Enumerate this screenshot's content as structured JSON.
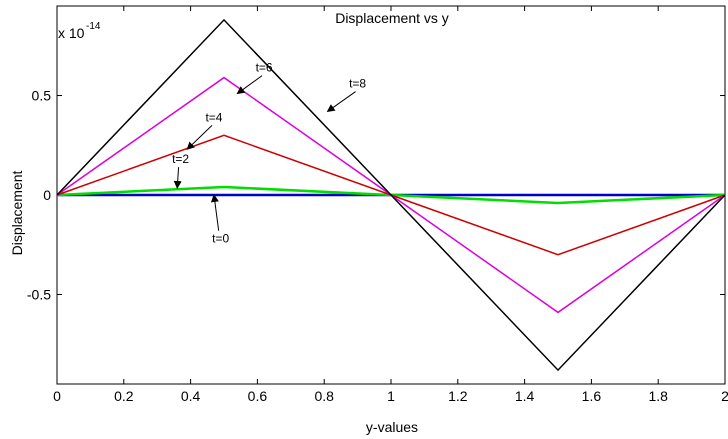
{
  "chart_data": {
    "type": "line",
    "title": "Displacement vs y",
    "xlabel": "y-values",
    "ylabel": "Displacement",
    "y_exponent_base": "x 10",
    "y_exponent_power": "-14",
    "xlim": [
      0,
      2
    ],
    "ylim": [
      -0.95,
      0.95
    ],
    "x_ticks": [
      0,
      0.2,
      0.4,
      0.6,
      0.8,
      1,
      1.2,
      1.4,
      1.6,
      1.8,
      2
    ],
    "x_tick_labels": [
      "0",
      "0.2",
      "0.4",
      "0.6",
      "0.8",
      "1",
      "1.2",
      "1.4",
      "1.6",
      "1.8",
      "2"
    ],
    "y_ticks": [
      -0.5,
      0,
      0.5
    ],
    "y_tick_labels": [
      "-0.5",
      "0",
      "0.5"
    ],
    "grid": false,
    "series": [
      {
        "name": "t=0",
        "color": "#0000cc",
        "width": 2.5,
        "x": [
          0,
          0.5,
          1,
          1.5,
          2
        ],
        "y": [
          0,
          0,
          0,
          0,
          0
        ]
      },
      {
        "name": "t=2",
        "color": "#00dd00",
        "width": 2.5,
        "x": [
          0,
          0.5,
          1,
          1.5,
          2
        ],
        "y": [
          0,
          0.04,
          0,
          -0.04,
          0
        ]
      },
      {
        "name": "t=4",
        "color": "#cc0000",
        "width": 1.5,
        "x": [
          0,
          0.5,
          1,
          1.5,
          2
        ],
        "y": [
          0,
          0.3,
          0,
          -0.3,
          0
        ]
      },
      {
        "name": "t=6",
        "color": "#dd00dd",
        "width": 1.5,
        "x": [
          0,
          0.5,
          1,
          1.5,
          2
        ],
        "y": [
          0,
          0.59,
          0,
          -0.59,
          0
        ]
      },
      {
        "name": "t=8",
        "color": "#000000",
        "width": 1.5,
        "x": [
          0,
          0.5,
          1,
          1.5,
          2
        ],
        "y": [
          0,
          0.88,
          0,
          -0.88,
          0
        ]
      }
    ],
    "annotations": [
      {
        "text": "t=0",
        "x": 0.49,
        "y": -0.24,
        "arrow_to": [
          0.47,
          0
        ]
      },
      {
        "text": "t=2",
        "x": 0.37,
        "y": 0.16,
        "arrow_to": [
          0.36,
          0.035
        ]
      },
      {
        "text": "t=4",
        "x": 0.47,
        "y": 0.37,
        "arrow_to": [
          0.39,
          0.23
        ]
      },
      {
        "text": "t=6",
        "x": 0.62,
        "y": 0.62,
        "arrow_to": [
          0.54,
          0.51
        ]
      },
      {
        "text": "t=8",
        "x": 0.9,
        "y": 0.54,
        "arrow_to": [
          0.81,
          0.42
        ]
      }
    ]
  }
}
